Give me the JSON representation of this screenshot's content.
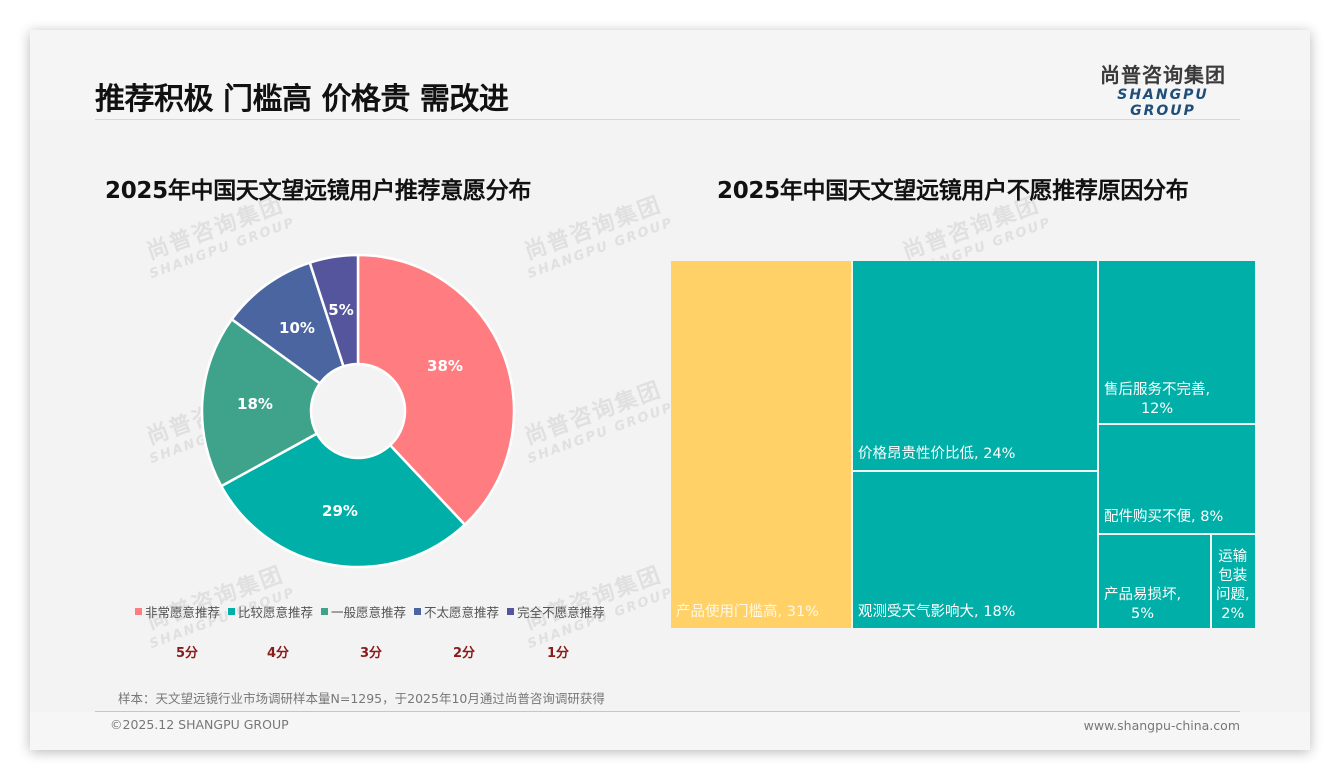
{
  "header": {
    "title": "推荐积极 门槛高 价格贵 需改进",
    "logo_cn": "尚普咨询集团",
    "logo_en": "SHANGPU GROUP"
  },
  "watermark": {
    "cn": "尚普咨询集团",
    "en": "SHANGPU GROUP"
  },
  "left_chart": {
    "title": "2025年中国天文望远镜用户推荐意愿分布",
    "legend": [
      {
        "label": "非常愿意推荐",
        "color": "#ff7c80"
      },
      {
        "label": "比较愿意推荐",
        "color": "#00b0a8"
      },
      {
        "label": "一般愿意推荐",
        "color": "#3fa38c"
      },
      {
        "label": "不太愿意推荐",
        "color": "#4a65a0"
      },
      {
        "label": "完全不愿意推荐",
        "color": "#55559e"
      }
    ],
    "scores": [
      "5分",
      "4分",
      "3分",
      "2分",
      "1分"
    ],
    "slice_labels": [
      "38%",
      "29%",
      "18%",
      "10%",
      "5%"
    ]
  },
  "right_chart": {
    "title": "2025年中国天文望远镜用户不愿推荐原因分布",
    "cells": [
      {
        "label": "产品使用门槛高, 31%"
      },
      {
        "label": "价格昂贵性价比低, 24%"
      },
      {
        "label": "观测受天气影响大, 18%"
      },
      {
        "label": "售后服务不完善,",
        "label2": "12%"
      },
      {
        "label": "配件购买不便, 8%"
      },
      {
        "label": "产品易损坏,",
        "label2": "5%"
      },
      {
        "label": "运输",
        "label2": "包装",
        "label3": "问题,",
        "label4": "2%"
      }
    ]
  },
  "chart_data": [
    {
      "type": "pie",
      "title": "2025年中国天文望远镜用户推荐意愿分布",
      "categories": [
        "非常愿意推荐",
        "比较愿意推荐",
        "一般愿意推荐",
        "不太愿意推荐",
        "完全不愿意推荐"
      ],
      "score_labels": [
        "5分",
        "4分",
        "3分",
        "2分",
        "1分"
      ],
      "values": [
        38,
        29,
        18,
        10,
        5
      ],
      "unit": "%",
      "donut": true,
      "colors": [
        "#ff7c80",
        "#00b0a8",
        "#3fa38c",
        "#4a65a0",
        "#55559e"
      ],
      "legend_position": "bottom"
    },
    {
      "type": "treemap",
      "title": "2025年中国天文望远镜用户不愿推荐原因分布",
      "categories": [
        "产品使用门槛高",
        "价格昂贵性价比低",
        "观测受天气影响大",
        "售后服务不完善",
        "配件购买不便",
        "产品易损坏",
        "运输包装问题"
      ],
      "values": [
        31,
        24,
        18,
        12,
        8,
        5,
        2
      ],
      "unit": "%",
      "colors": [
        "#ffd166",
        "#00b0a8",
        "#00b0a8",
        "#00b0a8",
        "#00b0a8",
        "#00b0a8",
        "#00b0a8"
      ]
    }
  ],
  "footer": {
    "note": "样本：天文望远镜行业市场调研样本量N=1295，于2025年10月通过尚普咨询调研获得",
    "copyright": "©2025.12 SHANGPU GROUP",
    "website": "www.shangpu-china.com"
  }
}
